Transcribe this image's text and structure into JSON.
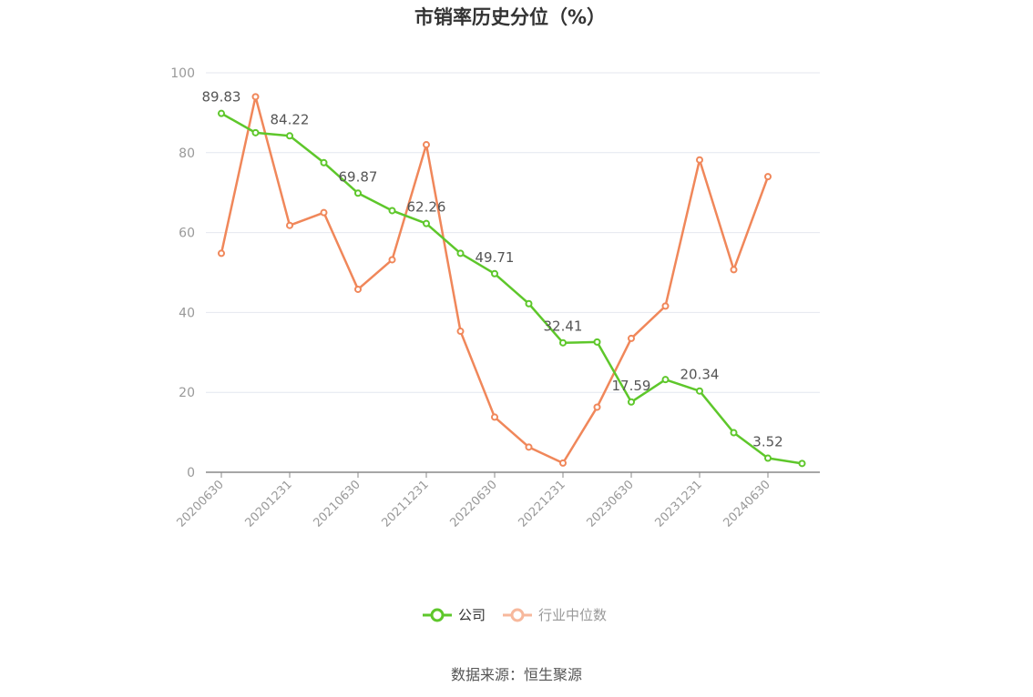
{
  "chart_data": {
    "type": "line",
    "title": "市销率历史分位（%）",
    "categories": [
      "20200630",
      "20200930",
      "20201231",
      "20210331",
      "20210630",
      "20210930",
      "20211231",
      "20220331",
      "20220630",
      "20220930",
      "20221231",
      "20230331",
      "20230630",
      "20230930",
      "20231231",
      "20240331",
      "20240630",
      "20240930"
    ],
    "x_tick_labels": [
      "20200630",
      "20201231",
      "20210630",
      "20211231",
      "20220630",
      "20221231",
      "20230630",
      "20231231",
      "20240630"
    ],
    "ylim": [
      0,
      100
    ],
    "yticks": [
      0,
      20,
      40,
      60,
      80,
      100
    ],
    "grid": true,
    "legend_position": "bottom",
    "series": [
      {
        "name": "公司",
        "color": "#5ec72b",
        "values": [
          89.83,
          85.0,
          84.22,
          77.5,
          69.87,
          65.5,
          62.26,
          54.8,
          49.71,
          42.2,
          32.41,
          32.6,
          17.59,
          23.2,
          20.34,
          9.9,
          3.52,
          2.2
        ],
        "labels": [
          {
            "index": 0,
            "text": "89.83"
          },
          {
            "index": 2,
            "text": "84.22"
          },
          {
            "index": 4,
            "text": "69.87"
          },
          {
            "index": 6,
            "text": "62.26"
          },
          {
            "index": 8,
            "text": "49.71"
          },
          {
            "index": 10,
            "text": "32.41"
          },
          {
            "index": 12,
            "text": "17.59"
          },
          {
            "index": 14,
            "text": "20.34"
          },
          {
            "index": 16,
            "text": "3.52"
          }
        ]
      },
      {
        "name": "行业中位数",
        "color": "#f0875a",
        "values": [
          54.8,
          94.0,
          61.8,
          65.0,
          45.8,
          53.2,
          82.0,
          35.3,
          13.8,
          6.3,
          2.3,
          16.3,
          33.5,
          41.6,
          78.2,
          50.7,
          74.0,
          null
        ]
      }
    ]
  },
  "source_text": "数据来源：恒生聚源"
}
